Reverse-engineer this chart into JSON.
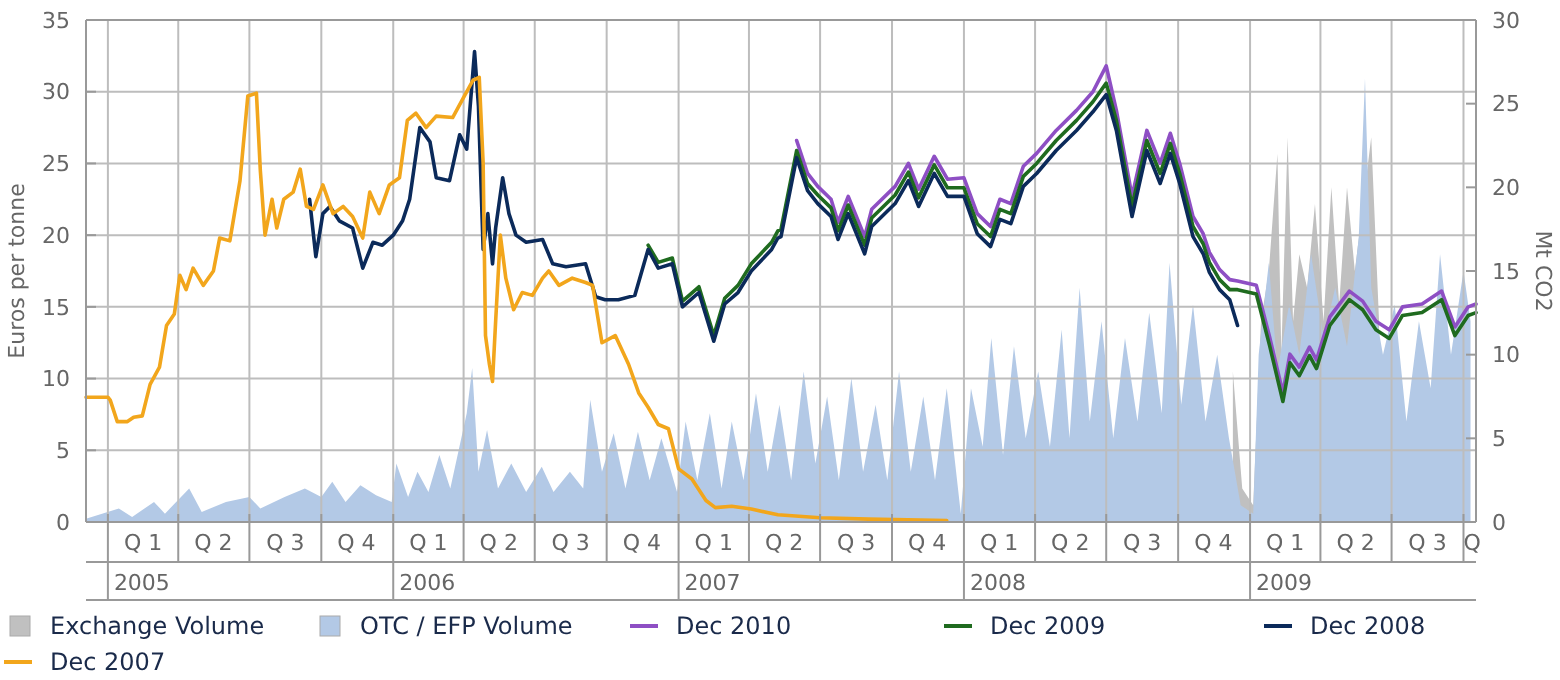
{
  "chart_data": {
    "type": "line",
    "ylabel": "Euros per tonne",
    "y2label": "Mt CO2",
    "xlim": [
      "2004-12-04",
      "2009-10-17"
    ],
    "ylim": [
      0,
      35
    ],
    "yticks": [
      0,
      5,
      10,
      15,
      20,
      25,
      30,
      35
    ],
    "y2lim": [
      0,
      30
    ],
    "y2ticks": [
      0,
      5,
      10,
      15,
      20,
      25,
      30
    ],
    "grid": true,
    "legend": "bottom",
    "marker": "none",
    "line_style": "solid",
    "xticks": [
      {
        "value": "2005-01-01",
        "label": null
      },
      {
        "value": "2005-02-15",
        "label": "Q 1"
      },
      {
        "value": "2005-04-01",
        "label": null
      },
      {
        "value": "2005-05-16",
        "label": "Q 2"
      },
      {
        "value": "2005-07-01",
        "label": null
      },
      {
        "value": "2005-08-16",
        "label": "Q 3"
      },
      {
        "value": "2005-10-01",
        "label": null
      },
      {
        "value": "2005-11-15",
        "label": "Q 4"
      },
      {
        "value": "2006-01-01",
        "label": null
      },
      {
        "value": "2006-02-15",
        "label": "Q 1"
      },
      {
        "value": "2006-04-01",
        "label": null
      },
      {
        "value": "2006-05-16",
        "label": "Q 2"
      },
      {
        "value": "2006-07-01",
        "label": null
      },
      {
        "value": "2006-08-16",
        "label": "Q 3"
      },
      {
        "value": "2006-10-01",
        "label": null
      },
      {
        "value": "2006-11-15",
        "label": "Q 4"
      },
      {
        "value": "2007-01-01",
        "label": null
      },
      {
        "value": "2007-02-15",
        "label": "Q 1"
      },
      {
        "value": "2007-04-01",
        "label": null
      },
      {
        "value": "2007-05-16",
        "label": "Q 2"
      },
      {
        "value": "2007-07-01",
        "label": null
      },
      {
        "value": "2007-08-16",
        "label": "Q 3"
      },
      {
        "value": "2007-10-01",
        "label": null
      },
      {
        "value": "2007-11-15",
        "label": "Q 4"
      },
      {
        "value": "2008-01-01",
        "label": null
      },
      {
        "value": "2008-02-15",
        "label": "Q 1"
      },
      {
        "value": "2008-04-01",
        "label": null
      },
      {
        "value": "2008-05-16",
        "label": "Q 2"
      },
      {
        "value": "2008-07-01",
        "label": null
      },
      {
        "value": "2008-08-16",
        "label": "Q 3"
      },
      {
        "value": "2008-10-01",
        "label": null
      },
      {
        "value": "2008-11-15",
        "label": "Q 4"
      },
      {
        "value": "2009-01-01",
        "label": null
      },
      {
        "value": "2009-02-15",
        "label": "Q 1"
      },
      {
        "value": "2009-04-01",
        "label": null
      },
      {
        "value": "2009-05-16",
        "label": "Q 2"
      },
      {
        "value": "2009-07-01",
        "label": null
      },
      {
        "value": "2009-08-16",
        "label": "Q 3"
      },
      {
        "value": "2009-10-01",
        "label": null
      },
      {
        "value": "2009-10-12",
        "label": "Q"
      }
    ],
    "annotations": [
      "2005",
      "2006",
      "2007",
      "2008",
      "2009"
    ],
    "series": [
      {
        "name": "Exchange Volume",
        "type": "area",
        "axis": "y2",
        "color": "#c0c0c0",
        "x": [
          "2008-12-10",
          "2008-12-22",
          "2009-01-05",
          "2009-01-15",
          "2009-01-25",
          "2009-02-05",
          "2009-02-10",
          "2009-02-18",
          "2009-02-25",
          "2009-03-05",
          "2009-03-15",
          "2009-03-25",
          "2009-04-05",
          "2009-04-15",
          "2009-04-25",
          "2009-05-05",
          "2009-05-15",
          "2009-06-05",
          "2009-06-15"
        ],
        "values": [
          9,
          2,
          1,
          12,
          15,
          22,
          10,
          23,
          12,
          16,
          14,
          19,
          12,
          20,
          13,
          20,
          15,
          23,
          12
        ]
      },
      {
        "name": "OTC / EFP Volume",
        "type": "area",
        "axis": "y2",
        "color": "#b3c9e6",
        "x": [
          "2004-12-04",
          "2005-01-15",
          "2005-02-01",
          "2005-03-01",
          "2005-03-15",
          "2005-04-15",
          "2005-05-01",
          "2005-06-01",
          "2005-07-01",
          "2005-07-15",
          "2005-08-15",
          "2005-09-10",
          "2005-10-01",
          "2005-10-15",
          "2005-11-01",
          "2005-11-20",
          "2005-12-10",
          "2005-12-30",
          "2006-01-05",
          "2006-01-20",
          "2006-02-01",
          "2006-02-15",
          "2006-03-01",
          "2006-03-15",
          "2006-04-05",
          "2006-04-12",
          "2006-04-20",
          "2006-05-01",
          "2006-05-15",
          "2006-06-01",
          "2006-06-20",
          "2006-07-10",
          "2006-07-25",
          "2006-08-15",
          "2006-09-01",
          "2006-09-10",
          "2006-09-25",
          "2006-10-10",
          "2006-10-25",
          "2006-11-10",
          "2006-11-25",
          "2006-12-10",
          "2006-12-30",
          "2007-01-10",
          "2007-01-25",
          "2007-02-10",
          "2007-02-25",
          "2007-03-10",
          "2007-03-25",
          "2007-04-10",
          "2007-04-25",
          "2007-05-10",
          "2007-05-25",
          "2007-06-10",
          "2007-06-25",
          "2007-07-10",
          "2007-07-25",
          "2007-08-10",
          "2007-08-25",
          "2007-09-10",
          "2007-09-25",
          "2007-10-10",
          "2007-10-25",
          "2007-11-10",
          "2007-11-25",
          "2007-12-10",
          "2007-12-28",
          "2008-01-10",
          "2008-01-25",
          "2008-02-05",
          "2008-02-20",
          "2008-03-05",
          "2008-03-20",
          "2008-04-05",
          "2008-04-20",
          "2008-05-05",
          "2008-05-15",
          "2008-05-28",
          "2008-06-10",
          "2008-06-25",
          "2008-07-10",
          "2008-07-25",
          "2008-08-10",
          "2008-08-25",
          "2008-09-10",
          "2008-09-20",
          "2008-10-05",
          "2008-10-20",
          "2008-11-05",
          "2008-11-20",
          "2008-12-05",
          "2008-12-20",
          "2009-01-05",
          "2009-01-12",
          "2009-01-25",
          "2009-02-05",
          "2009-02-20",
          "2009-03-05",
          "2009-03-20",
          "2009-04-05",
          "2009-04-20",
          "2009-05-05",
          "2009-05-20",
          "2009-05-28",
          "2009-06-05",
          "2009-06-20",
          "2009-07-05",
          "2009-07-20",
          "2009-08-05",
          "2009-08-20",
          "2009-09-01",
          "2009-09-15",
          "2009-10-01",
          "2009-10-10"
        ],
        "values": [
          0.2,
          0.8,
          0.3,
          1.2,
          0.5,
          2,
          0.6,
          1.2,
          1.5,
          0.8,
          1.5,
          2,
          1.5,
          2.4,
          1.2,
          2.2,
          1.6,
          1.2,
          3.5,
          1.5,
          3,
          1.8,
          4,
          2,
          6.5,
          9.2,
          3,
          5.5,
          2,
          3.5,
          1.8,
          3.3,
          1.8,
          3,
          2,
          7.3,
          3,
          5.3,
          2,
          5.4,
          2.5,
          5,
          1.8,
          6,
          2.5,
          6.5,
          2,
          6,
          2.5,
          7.7,
          3,
          7,
          2.5,
          9,
          3.5,
          7.5,
          2.5,
          8.6,
          3,
          7,
          2.5,
          9,
          3,
          7.5,
          2.5,
          8,
          0.5,
          8,
          4.5,
          11,
          4,
          10.5,
          5,
          9,
          4.5,
          11.5,
          5,
          14,
          6,
          12,
          5,
          11,
          6,
          12.5,
          6.5,
          15.5,
          7,
          13,
          6,
          10,
          5,
          1,
          0.5,
          10,
          15.5,
          9,
          13,
          10,
          16,
          11,
          14,
          10.5,
          17,
          26.5,
          14,
          10,
          13,
          6,
          12,
          8,
          16,
          10,
          15,
          12
        ]
      },
      {
        "name": "Dec 2010",
        "color": "#8e4fc4",
        "x": [
          "2007-06-01",
          "2007-06-15",
          "2007-06-28",
          "2007-07-15",
          "2007-07-24",
          "2007-08-06",
          "2007-08-27",
          "2007-09-05",
          "2007-10-05",
          "2007-10-22",
          "2007-11-04",
          "2007-11-24",
          "2007-12-11",
          "2008-01-01",
          "2008-01-18",
          "2008-02-04",
          "2008-02-16",
          "2008-03-01",
          "2008-03-17",
          "2008-04-03",
          "2008-04-28",
          "2008-05-24",
          "2008-06-14",
          "2008-07-01",
          "2008-07-14",
          "2008-08-03",
          "2008-08-22",
          "2008-09-08",
          "2008-09-21",
          "2008-10-03",
          "2008-10-20",
          "2008-11-02",
          "2008-11-10",
          "2008-11-23",
          "2008-12-06",
          "2008-12-16",
          "2009-01-09",
          "2009-01-26",
          "2009-02-12",
          "2009-02-21",
          "2009-03-05",
          "2009-03-18",
          "2009-03-27",
          "2009-04-13",
          "2009-05-08",
          "2009-05-25",
          "2009-06-11",
          "2009-06-28",
          "2009-07-15",
          "2009-08-09",
          "2009-09-03",
          "2009-09-20",
          "2009-10-07",
          "2009-10-17"
        ],
        "values": [
          26.6,
          24.3,
          23.4,
          22.5,
          20.9,
          22.7,
          19.9,
          21.8,
          23.4,
          25,
          23.2,
          25.5,
          23.9,
          24,
          21.5,
          20.6,
          22.5,
          22.2,
          24.8,
          25.7,
          27.3,
          28.7,
          30,
          31.8,
          28.7,
          22.7,
          27.3,
          25,
          27.1,
          25,
          21.3,
          20.1,
          18.8,
          17.6,
          16.9,
          16.8,
          16.5,
          12.9,
          9,
          11.7,
          10.8,
          12.2,
          11.3,
          14.3,
          16.1,
          15.4,
          14,
          13.4,
          15,
          15.2,
          16.1,
          13.6,
          15,
          15.2
        ]
      },
      {
        "name": "Dec 2009",
        "color": "#1f6b1f",
        "x": [
          "2006-11-23",
          "2006-12-06",
          "2006-12-24",
          "2007-01-06",
          "2007-01-27",
          "2007-02-15",
          "2007-03-01",
          "2007-03-18",
          "2007-04-04",
          "2007-04-30",
          "2007-05-08",
          "2007-05-12",
          "2007-06-01",
          "2007-06-15",
          "2007-06-28",
          "2007-07-15",
          "2007-07-24",
          "2007-08-06",
          "2007-08-27",
          "2007-09-05",
          "2007-10-05",
          "2007-10-22",
          "2007-11-04",
          "2007-11-24",
          "2007-12-11",
          "2008-01-01",
          "2008-01-18",
          "2008-02-04",
          "2008-02-16",
          "2008-03-01",
          "2008-03-17",
          "2008-04-03",
          "2008-04-28",
          "2008-05-24",
          "2008-06-14",
          "2008-07-01",
          "2008-07-14",
          "2008-08-03",
          "2008-08-22",
          "2008-09-08",
          "2008-09-21",
          "2008-10-03",
          "2008-10-20",
          "2008-11-02",
          "2008-11-10",
          "2008-11-23",
          "2008-12-06",
          "2008-12-16",
          "2009-01-09",
          "2009-01-26",
          "2009-02-12",
          "2009-02-21",
          "2009-03-05",
          "2009-03-18",
          "2009-03-27",
          "2009-04-13",
          "2009-05-08",
          "2009-05-25",
          "2009-06-11",
          "2009-06-28",
          "2009-07-15",
          "2009-08-09",
          "2009-09-03",
          "2009-09-20",
          "2009-10-07",
          "2009-10-17"
        ],
        "values": [
          19.3,
          18.1,
          18.4,
          15.4,
          16.4,
          13,
          15.6,
          16.5,
          18,
          19.5,
          20.3,
          20.4,
          25.9,
          23.6,
          22.8,
          21.9,
          20.3,
          22.1,
          19.3,
          21.2,
          22.8,
          24.4,
          22.6,
          24.9,
          23.3,
          23.3,
          20.8,
          19.9,
          21.8,
          21.5,
          24.1,
          25,
          26.6,
          28,
          29.3,
          30.6,
          28,
          22,
          26.6,
          24.3,
          26.4,
          24.3,
          20.6,
          19.4,
          18.1,
          16.9,
          16.2,
          16.2,
          15.9,
          12.3,
          8.4,
          11.1,
          10.2,
          11.6,
          10.7,
          13.7,
          15.5,
          14.8,
          13.4,
          12.8,
          14.4,
          14.6,
          15.5,
          13,
          14.4,
          14.6
        ]
      },
      {
        "name": "Dec 2008",
        "color": "#0b2a5a",
        "x": [
          "2005-09-16",
          "2005-09-24",
          "2005-10-03",
          "2005-10-12",
          "2005-10-24",
          "2005-11-10",
          "2005-11-23",
          "2005-12-06",
          "2005-12-18",
          "2006-01-01",
          "2006-01-13",
          "2006-01-22",
          "2006-02-04",
          "2006-02-17",
          "2006-02-25",
          "2006-03-14",
          "2006-03-27",
          "2006-04-05",
          "2006-04-15",
          "2006-04-20",
          "2006-04-26",
          "2006-05-02",
          "2006-05-08",
          "2006-05-12",
          "2006-05-21",
          "2006-05-29",
          "2006-06-07",
          "2006-06-20",
          "2006-07-11",
          "2006-07-24",
          "2006-08-10",
          "2006-09-04",
          "2006-09-17",
          "2006-09-29",
          "2006-10-16",
          "2006-11-06",
          "2006-11-23",
          "2006-12-06",
          "2006-12-24",
          "2007-01-06",
          "2007-01-27",
          "2007-02-15",
          "2007-03-01",
          "2007-03-18",
          "2007-04-04",
          "2007-04-30",
          "2007-05-08",
          "2007-05-12",
          "2007-06-01",
          "2007-06-15",
          "2007-06-28",
          "2007-07-15",
          "2007-07-24",
          "2007-08-06",
          "2007-08-27",
          "2007-09-05",
          "2007-10-05",
          "2007-10-22",
          "2007-11-04",
          "2007-11-24",
          "2007-12-11",
          "2008-01-01",
          "2008-01-18",
          "2008-02-04",
          "2008-02-16",
          "2008-03-01",
          "2008-03-17",
          "2008-04-03",
          "2008-04-28",
          "2008-05-24",
          "2008-06-14",
          "2008-07-01",
          "2008-07-14",
          "2008-08-03",
          "2008-08-22",
          "2008-09-08",
          "2008-09-21",
          "2008-10-03",
          "2008-10-20",
          "2008-11-02",
          "2008-11-10",
          "2008-11-23",
          "2008-12-06",
          "2008-12-16"
        ],
        "values": [
          22.5,
          18.5,
          21.5,
          22,
          21,
          20.5,
          17.7,
          19.5,
          19.3,
          20,
          21,
          22.5,
          27.5,
          26.5,
          24,
          23.8,
          27,
          26,
          32.8,
          29,
          19,
          21.5,
          18,
          20.5,
          24,
          21.5,
          20,
          19.5,
          19.7,
          18,
          17.8,
          18,
          15.7,
          15.5,
          15.5,
          15.8,
          19,
          17.7,
          18,
          15,
          16,
          12.6,
          15.2,
          16,
          17.5,
          19,
          19.8,
          19.9,
          25.4,
          23.1,
          22.2,
          21.3,
          19.7,
          21.5,
          18.7,
          20.6,
          22.2,
          23.8,
          22,
          24.3,
          22.7,
          22.7,
          20.1,
          19.2,
          21.1,
          20.8,
          23.4,
          24.3,
          25.9,
          27.3,
          28.6,
          29.8,
          27.3,
          21.3,
          25.9,
          23.6,
          25.7,
          23.6,
          19.9,
          18.7,
          17.4,
          16.2,
          15.5,
          13.7
        ]
      },
      {
        "name": "Dec 2007",
        "color": "#f2a61c",
        "x": [
          "2004-12-04",
          "2005-01-01",
          "2005-01-04",
          "2005-01-13",
          "2005-01-26",
          "2005-02-03",
          "2005-02-14",
          "2005-02-24",
          "2005-03-08",
          "2005-03-17",
          "2005-03-27",
          "2005-04-03",
          "2005-04-11",
          "2005-04-20",
          "2005-05-03",
          "2005-05-16",
          "2005-05-24",
          "2005-06-06",
          "2005-06-19",
          "2005-06-29",
          "2005-07-10",
          "2005-07-15",
          "2005-07-21",
          "2005-07-30",
          "2005-08-05",
          "2005-08-14",
          "2005-08-26",
          "2005-09-04",
          "2005-09-12",
          "2005-09-21",
          "2005-10-03",
          "2005-10-16",
          "2005-10-29",
          "2005-11-10",
          "2005-11-23",
          "2005-12-02",
          "2005-12-14",
          "2005-12-27",
          "2006-01-09",
          "2006-01-19",
          "2006-01-30",
          "2006-02-12",
          "2006-02-25",
          "2006-03-18",
          "2006-03-31",
          "2006-04-13",
          "2006-04-21",
          "2006-04-26",
          "2006-04-29",
          "2006-05-04",
          "2006-05-08",
          "2006-05-12",
          "2006-05-18",
          "2006-05-25",
          "2006-06-04",
          "2006-06-15",
          "2006-06-28",
          "2006-07-11",
          "2006-07-19",
          "2006-08-01",
          "2006-08-18",
          "2006-09-04",
          "2006-09-13",
          "2006-09-25",
          "2006-10-12",
          "2006-10-29",
          "2006-11-11",
          "2006-11-23",
          "2006-12-06",
          "2006-12-19",
          "2007-01-01",
          "2007-01-18",
          "2007-02-05",
          "2007-02-17",
          "2007-03-10",
          "2007-04-04",
          "2007-05-08",
          "2007-07-01",
          "2007-09-01",
          "2007-12-10"
        ],
        "values": [
          8.7,
          8.7,
          8.5,
          7,
          7,
          7.3,
          7.4,
          9.6,
          10.8,
          13.7,
          14.5,
          17.2,
          16.2,
          17.7,
          16.5,
          17.5,
          19.8,
          19.6,
          23.8,
          29.7,
          29.9,
          24.5,
          20,
          22.5,
          20.5,
          22.5,
          23,
          24.6,
          22,
          21.8,
          23.5,
          21.5,
          22,
          21.3,
          19.8,
          23,
          21.5,
          23.5,
          24,
          28,
          28.5,
          27.5,
          28.3,
          28.2,
          29.5,
          30.8,
          31,
          25,
          13,
          11,
          9.8,
          14,
          20,
          17,
          14.8,
          16,
          15.8,
          17,
          17.5,
          16.5,
          17,
          16.7,
          16.5,
          12.5,
          13,
          11,
          9,
          8,
          6.8,
          6.5,
          3.7,
          3,
          1.5,
          1,
          1.1,
          0.9,
          0.5,
          0.3,
          0.2,
          0.1
        ]
      }
    ]
  }
}
